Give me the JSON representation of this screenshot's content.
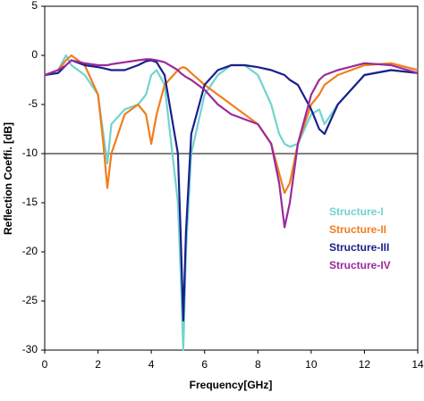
{
  "chart_data": {
    "type": "line",
    "x_label": "Frequency[GHz]",
    "y_label": "Reflection Coeffi. [dB]",
    "x": [
      0,
      0.5,
      0.8,
      1,
      1.5,
      2,
      2.2,
      2.35,
      2.5,
      3,
      3.5,
      3.8,
      4,
      4.2,
      4.5,
      5,
      5.1,
      5.2,
      5.3,
      5.5,
      6,
      6.5,
      7,
      7.5,
      8,
      8.5,
      8.8,
      9,
      9.2,
      9.5,
      10,
      10.3,
      10.5,
      11,
      12,
      13,
      14
    ],
    "series": [
      {
        "name": "Structure-I",
        "color": "#70d4cf",
        "values": [
          -2,
          -1.5,
          0,
          -1,
          -2,
          -4,
          -8,
          -11,
          -7,
          -5.5,
          -5,
          -4,
          -2,
          -1.5,
          -3,
          -15,
          -22,
          -30,
          -20,
          -10,
          -4,
          -2,
          -1,
          -1,
          -2,
          -5,
          -8,
          -9,
          -9.3,
          -9,
          -6,
          -5.5,
          -7,
          -5,
          -2,
          -1.5,
          -1.8
        ]
      },
      {
        "name": "Structure-II",
        "color": "#f07e1e",
        "values": [
          -2,
          -1.5,
          -0.5,
          0,
          -1,
          -4,
          -9,
          -13.5,
          -10,
          -6,
          -5,
          -6,
          -9,
          -6,
          -3,
          -1.5,
          -1.3,
          -1.2,
          -1.3,
          -1.8,
          -3,
          -4,
          -5,
          -6,
          -7,
          -9,
          -12,
          -14,
          -13,
          -9,
          -5,
          -4,
          -3,
          -2,
          -1,
          -0.8,
          -1.5
        ]
      },
      {
        "name": "Structure-III",
        "color": "#1b1f8a",
        "values": [
          -2,
          -1.8,
          -1,
          -0.5,
          -1,
          -1.2,
          -1.3,
          -1.4,
          -1.5,
          -1.5,
          -1,
          -0.6,
          -0.5,
          -0.7,
          -2,
          -10,
          -18,
          -27,
          -18,
          -8,
          -3,
          -1.5,
          -1,
          -1,
          -1.2,
          -1.5,
          -1.8,
          -2,
          -2.5,
          -3,
          -5.5,
          -7.5,
          -8,
          -5,
          -2,
          -1.5,
          -1.8
        ]
      },
      {
        "name": "Structure-IV",
        "color": "#9b2a9b",
        "values": [
          -2,
          -1.5,
          -1,
          -0.5,
          -0.8,
          -1,
          -1,
          -1,
          -0.9,
          -0.7,
          -0.5,
          -0.4,
          -0.4,
          -0.5,
          -0.7,
          -1.5,
          -1.8,
          -2,
          -2.2,
          -2.5,
          -3.5,
          -5,
          -6,
          -6.5,
          -7,
          -9,
          -13,
          -17.5,
          -15,
          -9,
          -4,
          -2.5,
          -2,
          -1.5,
          -0.8,
          -1,
          -1.8
        ]
      }
    ],
    "xlim": [
      0,
      14
    ],
    "xticks": [
      0,
      2,
      4,
      6,
      8,
      10,
      12,
      14
    ],
    "ylim": [
      -30,
      5
    ],
    "yticks": [
      5,
      0,
      -5,
      -10,
      -15,
      -20,
      -25,
      -30
    ],
    "reference_line": -10,
    "legend": "lower right"
  }
}
